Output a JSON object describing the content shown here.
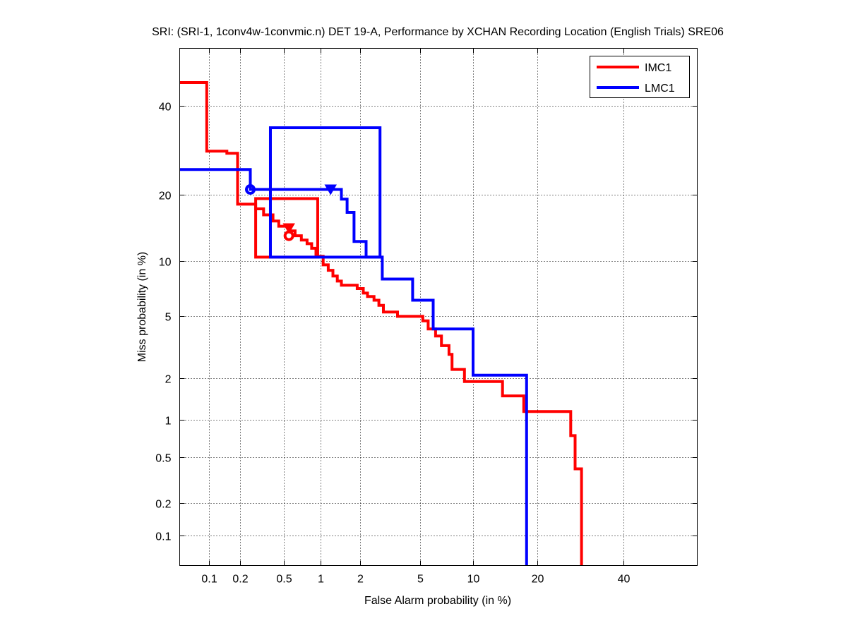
{
  "chart_data": {
    "type": "line",
    "title": "SRI: (SRI-1, 1conv4w-1convmic.n) DET 19-A,  Performance by XCHAN Recording Location (English Trials) SRE06",
    "xlabel": "False Alarm probability (in %)",
    "ylabel": "Miss probability (in %)",
    "xscale": "normal-deviate (probit)",
    "yscale": "normal-deviate (probit)",
    "xlim": [
      0.05,
      60
    ],
    "ylim": [
      0.05,
      55
    ],
    "xticks": [
      0.1,
      0.2,
      0.5,
      1,
      2,
      5,
      10,
      20,
      40
    ],
    "xtick_labels": [
      "0.1",
      "0.2",
      "0.5",
      "1",
      "2",
      "5",
      "10",
      "20",
      "40"
    ],
    "yticks": [
      0.1,
      0.2,
      0.5,
      1,
      2,
      5,
      10,
      20,
      40
    ],
    "ytick_labels": [
      "0.1",
      "0.2",
      "0.5",
      "1",
      "2",
      "5",
      "10",
      "20",
      "40"
    ],
    "grid": true,
    "legend_position": "top-right",
    "series": [
      {
        "name": "IMC1",
        "color": "#ff0000",
        "points": [
          [
            0.05,
            46
          ],
          [
            0.095,
            46
          ],
          [
            0.095,
            29
          ],
          [
            0.15,
            29
          ],
          [
            0.15,
            28.5
          ],
          [
            0.19,
            28.5
          ],
          [
            0.19,
            18.3
          ],
          [
            0.28,
            18.3
          ],
          [
            0.28,
            17.5
          ],
          [
            0.33,
            17.5
          ],
          [
            0.33,
            16.5
          ],
          [
            0.4,
            16.5
          ],
          [
            0.4,
            15.5
          ],
          [
            0.45,
            15.5
          ],
          [
            0.45,
            14.7
          ],
          [
            0.55,
            14.7
          ],
          [
            0.55,
            14.0
          ],
          [
            0.62,
            14.0
          ],
          [
            0.62,
            13.3
          ],
          [
            0.7,
            13.3
          ],
          [
            0.7,
            12.7
          ],
          [
            0.78,
            12.7
          ],
          [
            0.78,
            12.2
          ],
          [
            0.85,
            12.2
          ],
          [
            0.85,
            11.6
          ],
          [
            0.92,
            11.6
          ],
          [
            0.92,
            10.6
          ],
          [
            1.05,
            10.6
          ],
          [
            1.05,
            9.6
          ],
          [
            1.15,
            9.6
          ],
          [
            1.15,
            9.0
          ],
          [
            1.25,
            9.0
          ],
          [
            1.25,
            8.4
          ],
          [
            1.35,
            8.4
          ],
          [
            1.35,
            7.9
          ],
          [
            1.45,
            7.9
          ],
          [
            1.45,
            7.5
          ],
          [
            1.9,
            7.5
          ],
          [
            1.9,
            7.2
          ],
          [
            2.1,
            7.2
          ],
          [
            2.1,
            6.8
          ],
          [
            2.25,
            6.8
          ],
          [
            2.25,
            6.5
          ],
          [
            2.5,
            6.5
          ],
          [
            2.5,
            6.2
          ],
          [
            2.7,
            6.2
          ],
          [
            2.7,
            5.8
          ],
          [
            2.9,
            5.8
          ],
          [
            2.9,
            5.3
          ],
          [
            3.6,
            5.3
          ],
          [
            3.6,
            5.0
          ],
          [
            5.2,
            5.0
          ],
          [
            5.2,
            4.7
          ],
          [
            5.6,
            4.7
          ],
          [
            5.6,
            4.2
          ],
          [
            6.2,
            4.2
          ],
          [
            6.2,
            3.8
          ],
          [
            6.7,
            3.8
          ],
          [
            6.7,
            3.3
          ],
          [
            7.4,
            3.3
          ],
          [
            7.4,
            2.9
          ],
          [
            7.7,
            2.9
          ],
          [
            7.7,
            2.3
          ],
          [
            9.0,
            2.3
          ],
          [
            9.0,
            1.9
          ],
          [
            14,
            1.9
          ],
          [
            14,
            1.5
          ],
          [
            17.5,
            1.5
          ],
          [
            17.5,
            1.15
          ],
          [
            27,
            1.15
          ],
          [
            27,
            0.75
          ],
          [
            28,
            0.75
          ],
          [
            28,
            0.4
          ],
          [
            29.5,
            0.4
          ],
          [
            29.5,
            0.05
          ]
        ],
        "box": {
          "fa_lo": 0.28,
          "fa_hi": 0.95,
          "miss_lo": 10.5,
          "miss_hi": 19.3
        },
        "markers": [
          {
            "shape": "circle",
            "fa": 0.55,
            "miss": 13.3
          },
          {
            "shape": "triangle-down",
            "fa": 0.55,
            "miss": 14.4
          }
        ]
      },
      {
        "name": "LMC1",
        "color": "#0000ff",
        "points": [
          [
            0.05,
            25
          ],
          [
            0.25,
            25
          ],
          [
            0.25,
            21.0
          ],
          [
            1.45,
            21.0
          ],
          [
            1.45,
            19.2
          ],
          [
            1.6,
            19.2
          ],
          [
            1.6,
            16.9
          ],
          [
            1.8,
            16.9
          ],
          [
            1.8,
            12.5
          ],
          [
            2.2,
            12.5
          ],
          [
            2.2,
            10.5
          ],
          [
            2.85,
            10.5
          ],
          [
            2.85,
            8.1
          ],
          [
            4.5,
            8.1
          ],
          [
            4.5,
            6.2
          ],
          [
            6.0,
            6.2
          ],
          [
            6.0,
            4.2
          ],
          [
            10,
            4.2
          ],
          [
            10,
            2.1
          ],
          [
            18,
            2.1
          ],
          [
            18,
            0.05
          ]
        ],
        "box": {
          "fa_lo": 0.38,
          "fa_hi": 2.75,
          "miss_lo": 10.5,
          "miss_hi": 34.5
        },
        "markers": [
          {
            "shape": "circle",
            "fa": 0.25,
            "miss": 21.0
          },
          {
            "shape": "triangle-down",
            "fa": 1.2,
            "miss": 21.0
          }
        ]
      }
    ]
  }
}
